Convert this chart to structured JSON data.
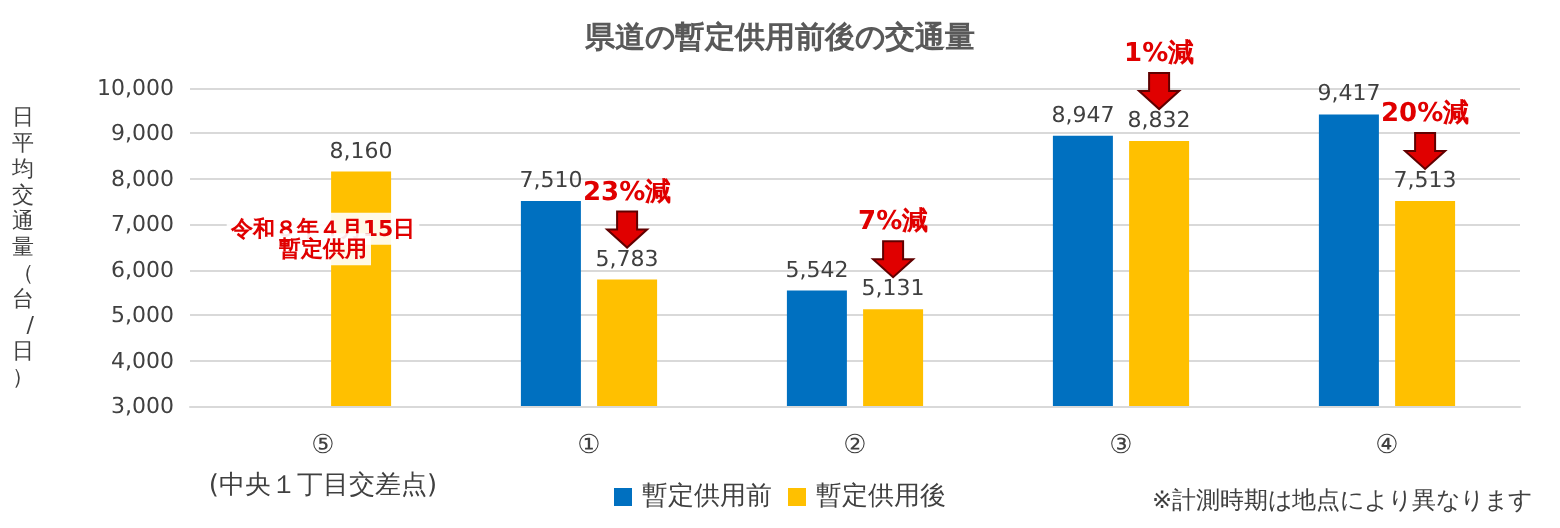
{
  "chart_data": {
    "type": "bar",
    "title": "県道の暫定供用前後の交通量",
    "ylabel": "日平均交通量（台/日）",
    "categories": [
      "⑤\n(中央１丁目交差点)",
      "①",
      "②",
      "③",
      "④"
    ],
    "series": [
      {
        "name": "暫定供用前",
        "color": "#0070c0",
        "values": [
          null,
          7510,
          5542,
          8947,
          9417
        ],
        "value_labels": [
          null,
          "7,510",
          "5,542",
          "8,947",
          "9,417"
        ]
      },
      {
        "name": "暫定供用後",
        "color": "#ffc000",
        "values": [
          8160,
          5783,
          5131,
          8832,
          7513
        ],
        "value_labels": [
          "8,160",
          "5,783",
          "5,131",
          "8,832",
          "7,513"
        ]
      }
    ],
    "ylim": [
      3000,
      10000
    ],
    "yticks": [
      {
        "value": 3000,
        "label": "3,000"
      },
      {
        "value": 4000,
        "label": "4,000"
      },
      {
        "value": 5000,
        "label": "5,000"
      },
      {
        "value": 6000,
        "label": "6,000"
      },
      {
        "value": 7000,
        "label": "7,000"
      },
      {
        "value": 8000,
        "label": "8,000"
      },
      {
        "value": 9000,
        "label": "9,000"
      },
      {
        "value": 10000,
        "label": "10,000"
      }
    ],
    "grid": "y",
    "legend": "bottom",
    "annotations": [
      {
        "text": "令和８年４月15日",
        "x": "⑤\n(中央１丁目交差点)",
        "y": 6900
      },
      {
        "text": "暫定供用",
        "x": "⑤\n(中央１丁目交差点)",
        "y": 6450
      },
      {
        "text": "23%減",
        "x": "①",
        "y": 5783
      },
      {
        "text": "7%減",
        "x": "②",
        "y": 5131
      },
      {
        "text": "1%減",
        "x": "③",
        "y": 8832
      },
      {
        "text": "20%減",
        "x": "④",
        "y": 7513
      },
      "※計測時期は地点により異なります"
    ]
  }
}
